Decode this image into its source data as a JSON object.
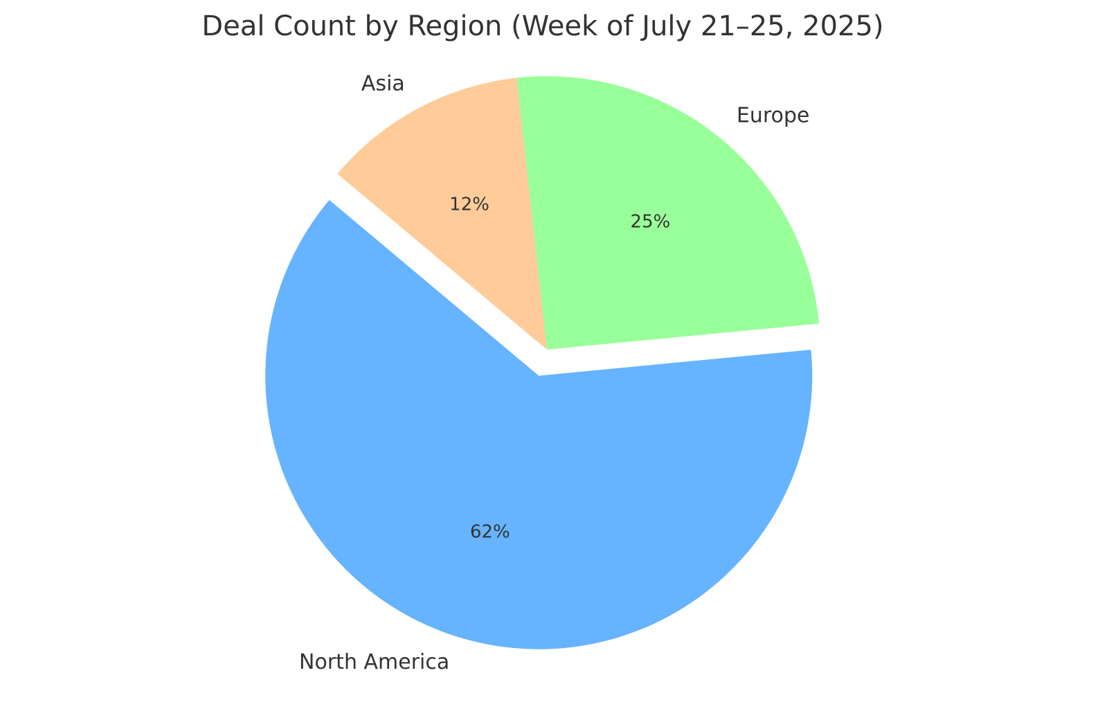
{
  "chart_data": {
    "type": "pie",
    "title": "Deal Count by Region (Week of July 21–25, 2025)",
    "categories": [
      "North America",
      "Europe",
      "Asia"
    ],
    "values": [
      62,
      25,
      12
    ],
    "value_labels": [
      "62%",
      "25%",
      "12%"
    ],
    "colors": [
      "#66b3ff",
      "#99ff99",
      "#ffcc99"
    ],
    "explode": [
      0.1,
      0,
      0
    ]
  }
}
